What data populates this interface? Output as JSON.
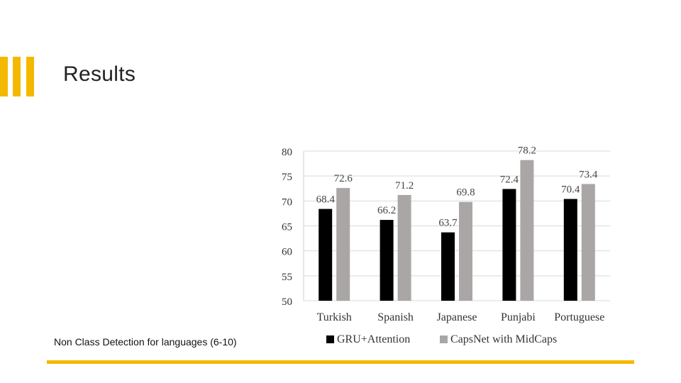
{
  "slide": {
    "title": "Results",
    "caption": "Non Class Detection for languages (6-10)",
    "accent_color": "#f5b800"
  },
  "chart_data": {
    "type": "bar",
    "categories": [
      "Turkish",
      "Spanish",
      "Japanese",
      "Punjabi",
      "Portuguese"
    ],
    "series": [
      {
        "name": "GRU+Attention",
        "values": [
          68.4,
          66.2,
          63.7,
          72.4,
          70.4
        ],
        "color": "#000000"
      },
      {
        "name": "CapsNet with MidCaps",
        "values": [
          72.6,
          71.2,
          69.8,
          78.2,
          73.4
        ],
        "color": "#aaa6a6"
      }
    ],
    "yticks": [
      50,
      55,
      60,
      65,
      70,
      75,
      80
    ],
    "ylim": [
      50,
      80
    ],
    "grid": true,
    "legend": "bottom",
    "data_labels": true
  }
}
